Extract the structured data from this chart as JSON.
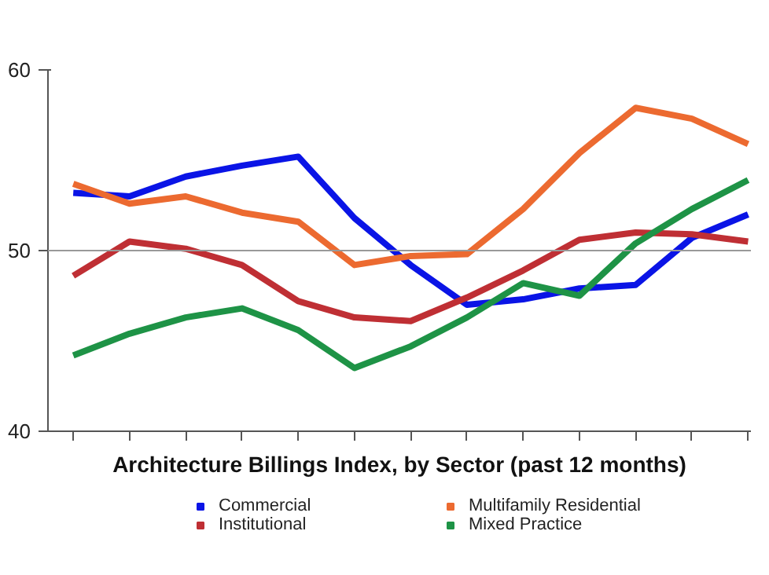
{
  "chart_data": {
    "type": "line",
    "title": "Architecture Billings Index, by Sector (past 12 months)",
    "categories": [
      null,
      null,
      null,
      null,
      null,
      null,
      null,
      null,
      null,
      null,
      null,
      null,
      null
    ],
    "series": [
      {
        "name": "Commercial",
        "color": "#0a14e6",
        "values": [
          53.2,
          53.0,
          54.1,
          54.7,
          55.2,
          51.8,
          49.2,
          47.0,
          47.3,
          47.9,
          48.1,
          50.7,
          52.0
        ]
      },
      {
        "name": "Institutional",
        "color": "#bf2f34",
        "values": [
          48.6,
          50.5,
          50.1,
          49.2,
          47.2,
          46.3,
          46.1,
          47.4,
          48.9,
          50.6,
          51.0,
          50.9,
          50.5
        ]
      },
      {
        "name": "Multifamily Residential",
        "color": "#ec6a30",
        "values": [
          53.7,
          52.6,
          53.0,
          52.1,
          51.6,
          49.2,
          49.7,
          49.8,
          52.3,
          55.4,
          57.9,
          57.3,
          55.9
        ]
      },
      {
        "name": "Mixed Practice",
        "color": "#1e9346",
        "values": [
          44.2,
          45.4,
          46.3,
          46.8,
          45.6,
          43.5,
          44.7,
          46.3,
          48.2,
          47.5,
          50.4,
          52.3,
          53.9
        ]
      }
    ],
    "ylim": [
      40,
      60
    ],
    "yticks": [
      40,
      50,
      60
    ],
    "grid": false,
    "legend": "bottom",
    "tick_labels": "y",
    "ref_lines": [
      {
        "axis": "y",
        "value": 50,
        "color": "#999999"
      }
    ]
  }
}
